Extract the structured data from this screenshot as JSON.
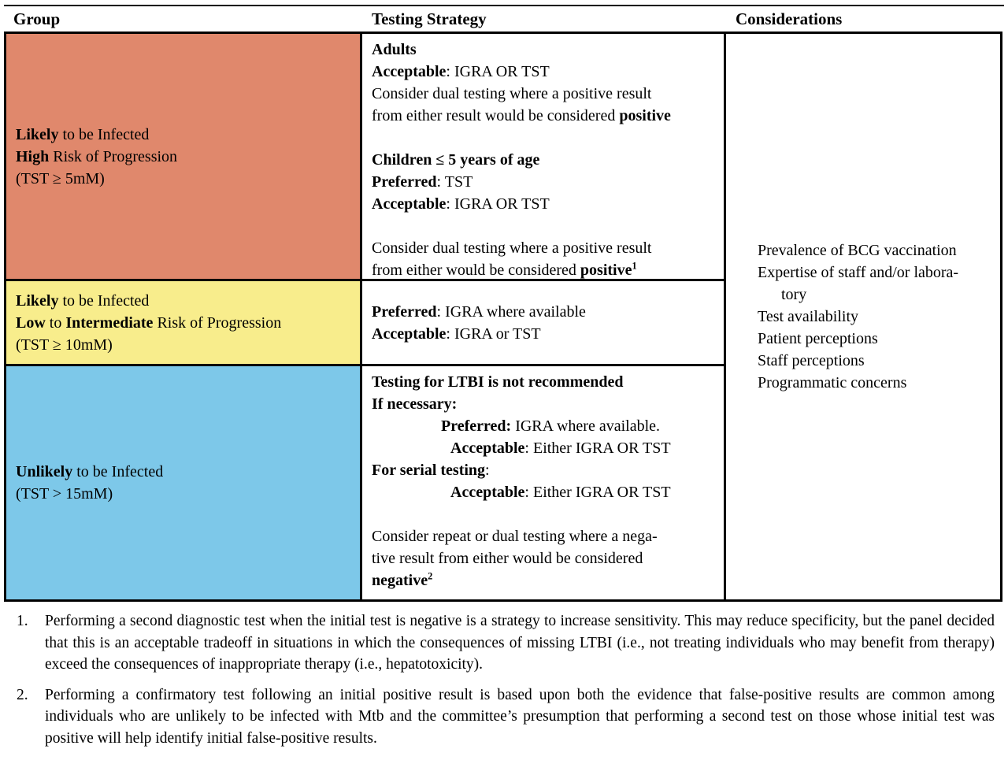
{
  "header": {
    "group": "Group",
    "testing_strategy": "Testing Strategy",
    "considerations": "Considerations"
  },
  "colors": {
    "likely_high_bg": "#E0886C",
    "likely_low_bg": "#F8ED8C",
    "unlikely_bg": "#7DC8E9",
    "border": "#000000"
  },
  "rows": [
    {
      "group_lines": [
        {
          "segs": [
            {
              "t": "Likely",
              "b": true
            },
            {
              "t": " to be Infected"
            }
          ]
        },
        {
          "segs": [
            {
              "t": "High",
              "b": true
            },
            {
              "t": " Risk of Progression"
            }
          ]
        },
        {
          "segs": [
            {
              "t": "(TST ≥ 5mM)"
            }
          ]
        }
      ],
      "strategy_lines": [
        {
          "segs": [
            {
              "t": "Adults",
              "b": true
            }
          ]
        },
        {
          "segs": [
            {
              "t": "Acceptable",
              "b": true
            },
            {
              "t": ": IGRA OR TST"
            }
          ]
        },
        {
          "segs": [
            {
              "t": "Consider dual testing where a positive result"
            }
          ]
        },
        {
          "segs": [
            {
              "t": "from either result would be considered "
            },
            {
              "t": "positive",
              "b": true
            }
          ]
        },
        {
          "segs": []
        },
        {
          "segs": [
            {
              "t": "Children ≤ 5 years of age",
              "b": true
            }
          ]
        },
        {
          "segs": [
            {
              "t": "Preferred",
              "b": true
            },
            {
              "t": ": TST"
            }
          ]
        },
        {
          "segs": [
            {
              "t": "Acceptable",
              "b": true
            },
            {
              "t": ": IGRA OR TST"
            }
          ]
        },
        {
          "segs": []
        },
        {
          "segs": [
            {
              "t": "Consider dual testing where a positive result"
            }
          ]
        },
        {
          "segs": [
            {
              "t": "from either would be considered "
            },
            {
              "t": "positive",
              "b": true
            },
            {
              "t": "1",
              "b": true,
              "sup": true
            }
          ]
        }
      ]
    },
    {
      "group_lines": [
        {
          "segs": [
            {
              "t": "Likely",
              "b": true
            },
            {
              "t": " to be Infected"
            }
          ]
        },
        {
          "segs": [
            {
              "t": "Low",
              "b": true
            },
            {
              "t": " to "
            },
            {
              "t": "Intermediate",
              "b": true
            },
            {
              "t": " Risk of Progression"
            }
          ]
        },
        {
          "segs": [
            {
              "t": "(TST ≥ 10mM)"
            }
          ]
        }
      ],
      "strategy_lines": [
        {
          "segs": [
            {
              "t": "Preferred",
              "b": true
            },
            {
              "t": ": IGRA where available"
            }
          ]
        },
        {
          "segs": [
            {
              "t": "Acceptable",
              "b": true
            },
            {
              "t": ": IGRA or TST"
            }
          ]
        }
      ]
    },
    {
      "group_lines": [
        {
          "segs": [
            {
              "t": "Unlikely",
              "b": true
            },
            {
              "t": " to be Infected"
            }
          ]
        },
        {
          "segs": [
            {
              "t": "(TST > 15mM)"
            }
          ]
        }
      ],
      "strategy_lines": [
        {
          "segs": [
            {
              "t": "Testing for LTBI is not recommended",
              "b": true
            }
          ]
        },
        {
          "segs": [
            {
              "t": "If necessary:",
              "b": true
            }
          ]
        },
        {
          "ind": 88,
          "segs": [
            {
              "t": "Preferred:",
              "b": true
            },
            {
              "t": " IGRA where available."
            }
          ]
        },
        {
          "ind": 100,
          "segs": [
            {
              "t": "Acceptable",
              "b": true
            },
            {
              "t": ": Either IGRA OR TST"
            }
          ]
        },
        {
          "segs": [
            {
              "t": "For serial testing",
              "b": true
            },
            {
              "t": ":"
            }
          ]
        },
        {
          "ind": 100,
          "segs": [
            {
              "t": "Acceptable",
              "b": true
            },
            {
              "t": ": Either IGRA OR TST"
            }
          ]
        },
        {
          "segs": []
        },
        {
          "segs": [
            {
              "t": "Consider repeat or dual testing where a nega-"
            }
          ]
        },
        {
          "segs": [
            {
              "t": "tive result from either would be considered"
            }
          ]
        },
        {
          "segs": [
            {
              "t": "negative",
              "b": true
            },
            {
              "t": "2",
              "b": true,
              "sup": true
            }
          ]
        }
      ]
    }
  ],
  "considerations_lines": [
    {
      "segs": [
        {
          "t": "Prevalence of BCG vaccination"
        }
      ]
    },
    {
      "segs": [
        {
          "t": "Expertise of staff and/or labora-"
        }
      ]
    },
    {
      "ind": 30,
      "segs": [
        {
          "t": "tory"
        }
      ]
    },
    {
      "segs": [
        {
          "t": "Test availability"
        }
      ]
    },
    {
      "segs": [
        {
          "t": "Patient perceptions"
        }
      ]
    },
    {
      "segs": [
        {
          "t": "Staff perceptions"
        }
      ]
    },
    {
      "segs": [
        {
          "t": "Programmatic concerns"
        }
      ]
    }
  ],
  "footnotes": [
    {
      "num": "1.",
      "text": "Performing a second diagnostic test when the initial test is negative is a strategy to increase sensitivity. This may reduce specificity, but the panel decided that this is an acceptable tradeoff in situations in which the consequences of missing LTBI (i.e., not treating individuals who may benefit from therapy) exceed the consequences of inappropriate therapy (i.e., hepatotoxicity)."
    },
    {
      "num": "2.",
      "text": "Performing a confirmatory test following an initial positive result is based upon both the evidence that false-positive results are common among individuals who are unlikely to be infected with Mtb and the committee’s presumption that performing a second test on those whose initial test was positive will help identify initial false-positive results."
    }
  ]
}
